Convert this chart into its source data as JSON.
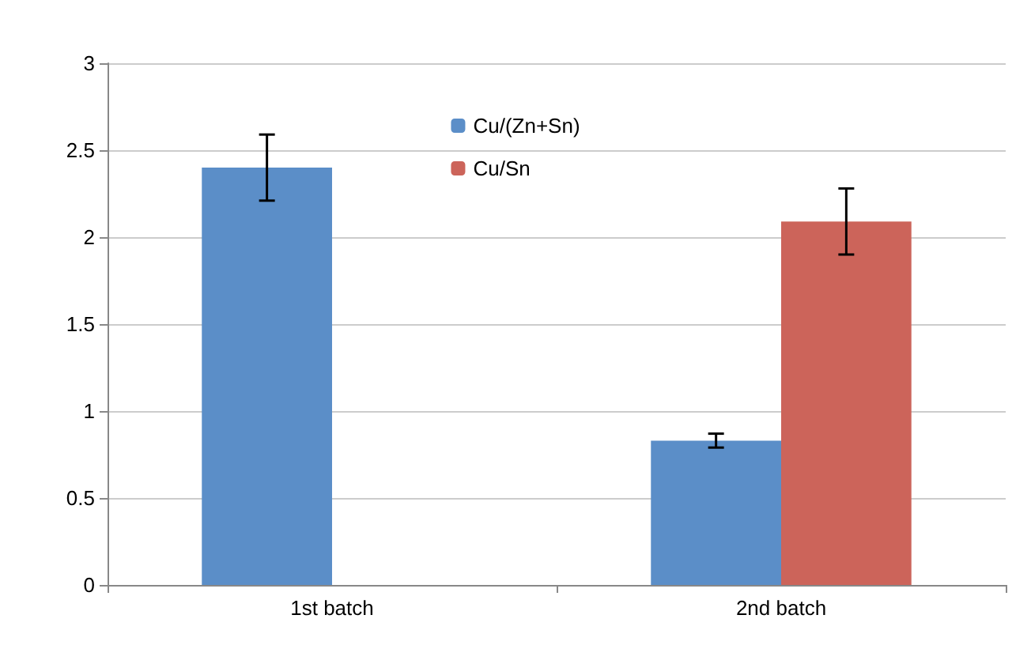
{
  "chart_data": {
    "type": "bar",
    "categories": [
      "1st batch",
      "2nd batch"
    ],
    "series": [
      {
        "name": "Cu/(Zn+Sn)",
        "color": "#5b8ec8",
        "values": [
          2.4,
          0.83
        ],
        "errors": [
          0.19,
          0.04
        ]
      },
      {
        "name": "Cu/Sn",
        "color": "#cc645a",
        "values": [
          null,
          2.09
        ],
        "errors": [
          null,
          0.19
        ]
      }
    ],
    "ylim": [
      0,
      3
    ],
    "yticks": [
      0,
      0.5,
      1,
      1.5,
      2,
      2.5,
      3
    ],
    "grid": "y",
    "legend": "top"
  }
}
